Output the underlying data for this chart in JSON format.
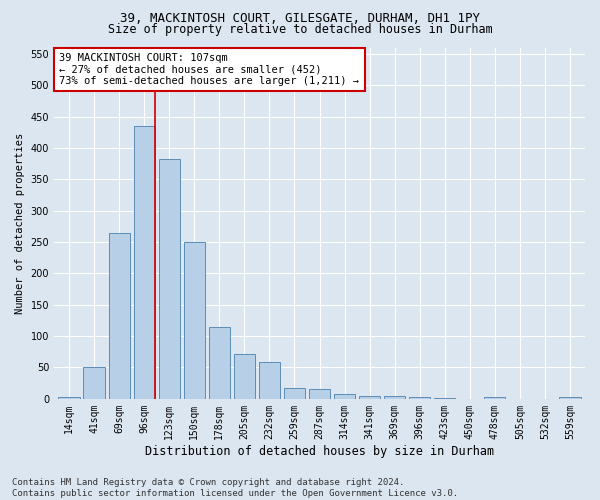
{
  "title1": "39, MACKINTOSH COURT, GILESGATE, DURHAM, DH1 1PY",
  "title2": "Size of property relative to detached houses in Durham",
  "xlabel": "Distribution of detached houses by size in Durham",
  "ylabel": "Number of detached properties",
  "categories": [
    "14sqm",
    "41sqm",
    "69sqm",
    "96sqm",
    "123sqm",
    "150sqm",
    "178sqm",
    "205sqm",
    "232sqm",
    "259sqm",
    "287sqm",
    "314sqm",
    "341sqm",
    "369sqm",
    "396sqm",
    "423sqm",
    "450sqm",
    "478sqm",
    "505sqm",
    "532sqm",
    "559sqm"
  ],
  "values": [
    3,
    51,
    265,
    435,
    382,
    250,
    115,
    72,
    59,
    18,
    15,
    7,
    5,
    4,
    3,
    1,
    0,
    3,
    0,
    0,
    3
  ],
  "bar_color": "#b8cfe8",
  "bar_edge_color": "#5b8db8",
  "vline_color": "#cc0000",
  "annotation_text": "39 MACKINTOSH COURT: 107sqm\n← 27% of detached houses are smaller (452)\n73% of semi-detached houses are larger (1,211) →",
  "annotation_box_facecolor": "#ffffff",
  "annotation_box_edgecolor": "#cc0000",
  "ylim": [
    0,
    560
  ],
  "yticks": [
    0,
    50,
    100,
    150,
    200,
    250,
    300,
    350,
    400,
    450,
    500,
    550
  ],
  "bg_color": "#dce6f0",
  "plot_bg_color": "#dce6f0",
  "grid_color": "#ffffff",
  "footer1": "Contains HM Land Registry data © Crown copyright and database right 2024.",
  "footer2": "Contains public sector information licensed under the Open Government Licence v3.0.",
  "title1_fontsize": 9,
  "title2_fontsize": 8.5,
  "xlabel_fontsize": 8.5,
  "ylabel_fontsize": 7.5,
  "tick_fontsize": 7,
  "annotation_fontsize": 7.5,
  "footer_fontsize": 6.5,
  "vline_x": 3.43
}
